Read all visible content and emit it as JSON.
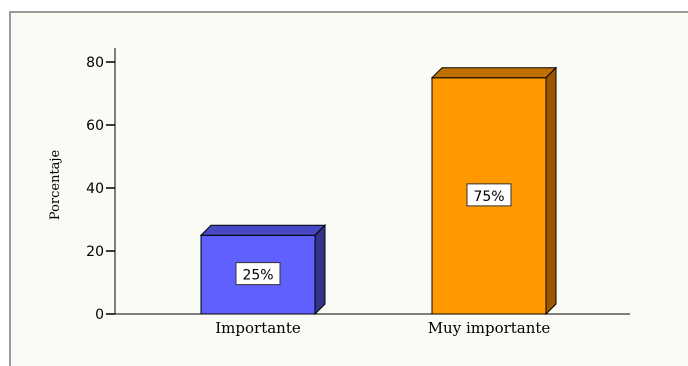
{
  "chart_data": {
    "type": "bar",
    "categories": [
      "Importante",
      "Muy importante"
    ],
    "values": [
      25,
      75
    ],
    "data_labels": [
      "25%",
      "75%"
    ],
    "title": "",
    "xlabel": "",
    "ylabel": "Porcentaje",
    "ylim": [
      0,
      80
    ],
    "yticks": [
      "0",
      "20",
      "40",
      "60",
      "80"
    ],
    "colors": {
      "Importante": {
        "front": "#6060ff",
        "side": "#33338a",
        "top": "#4848c4"
      },
      "Muy importante": {
        "front": "#ff9900",
        "side": "#9c5600",
        "top": "#bf7000"
      }
    },
    "grid": false,
    "legend": "none"
  }
}
